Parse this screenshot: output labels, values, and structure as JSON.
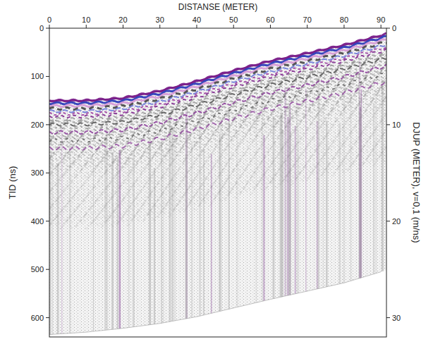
{
  "chart_data": {
    "type": "radargram",
    "title": "DISTANSE (METER)",
    "y_label": "TID (ns)",
    "y2_label": "DJUP (METER), v=0,1 (m/ns)",
    "x": [
      0,
      10,
      20,
      30,
      40,
      50,
      60,
      70,
      80,
      90
    ],
    "series": [
      {
        "color": "#7a1f8a",
        "values": [
          150,
          150,
          145,
          130,
          110,
          88,
          68,
          52,
          35,
          15
        ]
      },
      {
        "color": "#9a9a9a",
        "values": [
          635,
          630,
          622,
          612,
          598,
          580,
          562,
          545,
          528,
          505
        ]
      }
    ],
    "xlim": [
      0,
      91.5
    ],
    "xticks": [
      0,
      10,
      20,
      30,
      40,
      50,
      60,
      70,
      80,
      90
    ],
    "ylim": [
      0,
      640
    ],
    "yticks": [
      0,
      100,
      200,
      300,
      400,
      500,
      600
    ],
    "y2lim": [
      0,
      32
    ],
    "y2ticks": [
      0,
      10,
      20,
      30
    ],
    "grid": false
  }
}
